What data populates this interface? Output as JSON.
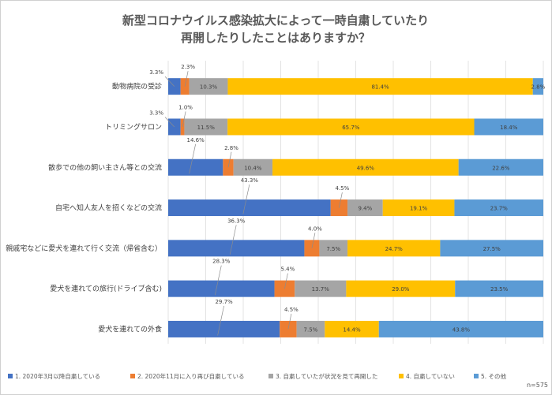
{
  "chart_data": {
    "type": "bar",
    "orientation": "horizontal",
    "stacked": true,
    "percent_stacked": true,
    "title": "新型コロナウイルス感染拡大によって一時自粛していたり再開したりしたことはありますか？",
    "title_lines": [
      "新型コロナウイルス感染拡大によって一時自粛していたり",
      "再開したりしたことはありますか？"
    ],
    "categories": [
      "動物病院の受診",
      "トリミングサロン",
      "散歩での他の飼い主さん等との交流",
      "自宅へ知人友人を招くなどの交流",
      "親戚宅などに愛犬を連れて行く交流（帰省含む）",
      "愛犬を連れての旅行(ドライブ含む)",
      "愛犬を連れての外食"
    ],
    "series": [
      {
        "name": "1. 2020年3月以降自粛している",
        "color": "#4472c4",
        "values": [
          3.3,
          3.3,
          14.6,
          43.3,
          36.3,
          28.3,
          29.7
        ]
      },
      {
        "name": "2. 2020年11月に入り再び自粛している",
        "color": "#ed7d31",
        "values": [
          2.3,
          1.0,
          2.8,
          4.5,
          4.0,
          5.4,
          4.5
        ]
      },
      {
        "name": "3. 自粛していたが状況を見て再開した",
        "color": "#a5a5a5",
        "values": [
          10.3,
          11.5,
          10.4,
          9.4,
          7.5,
          13.7,
          7.5
        ]
      },
      {
        "name": "4. 自粛していない",
        "color": "#ffc000",
        "values": [
          81.4,
          65.7,
          49.6,
          19.1,
          24.7,
          29.0,
          14.4
        ]
      },
      {
        "name": "5. その他",
        "color": "#5b9bd5",
        "values": [
          2.8,
          18.4,
          22.6,
          23.7,
          27.5,
          23.5,
          43.8
        ]
      }
    ],
    "data_labels": [
      [
        "3.3%",
        "2.3%",
        "10.3%",
        "81.4%",
        "2.8%"
      ],
      [
        "3.3%",
        "1.0%",
        "11.5%",
        "65.7%",
        "18.4%"
      ],
      [
        "14.6%",
        "2.8%",
        "10.4%",
        "49.6%",
        "22.6%"
      ],
      [
        "43.3%",
        "4.5%",
        "9.4%",
        "19.1%",
        "23.7%"
      ],
      [
        "36.3%",
        "4.0%",
        "7.5%",
        "24.7%",
        "27.5%"
      ],
      [
        "28.3%",
        "5.4%",
        "13.7%",
        "29.0%",
        "23.5%"
      ],
      [
        "29.7%",
        "4.5%",
        "7.5%",
        "14.4%",
        "43.8%"
      ]
    ],
    "xlim": [
      0,
      100
    ],
    "grid": true,
    "legend_position": "bottom",
    "note": "n=575"
  }
}
